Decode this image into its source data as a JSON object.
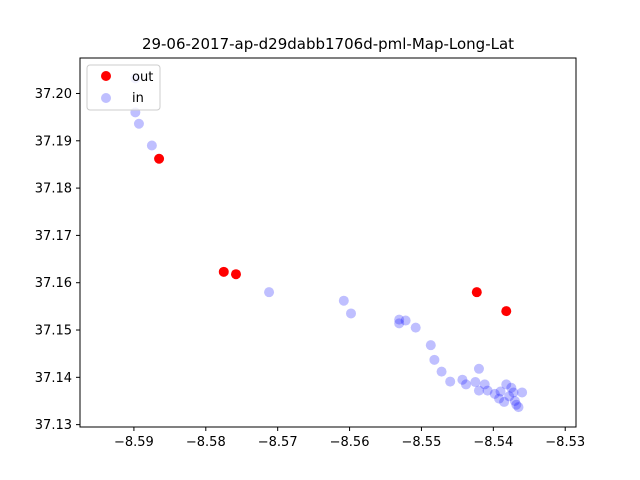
{
  "chart_data": {
    "type": "scatter",
    "title": "29-06-2017-ap-d29dabb1706d-pml-Map-Long-Lat",
    "xlabel": "",
    "ylabel": "",
    "xlim": [
      -8.5975,
      -8.5285
    ],
    "ylim": [
      37.1295,
      37.2075
    ],
    "x_ticks": [
      -8.59,
      -8.58,
      -8.57,
      -8.56,
      -8.55,
      -8.54,
      -8.53
    ],
    "x_tick_labels": [
      "−8.59",
      "−8.58",
      "−8.57",
      "−8.56",
      "−8.55",
      "−8.54",
      "−8.53"
    ],
    "y_ticks": [
      37.13,
      37.14,
      37.15,
      37.16,
      37.17,
      37.18,
      37.19,
      37.2
    ],
    "y_tick_labels": [
      "37.13",
      "37.14",
      "37.15",
      "37.16",
      "37.17",
      "37.18",
      "37.19",
      "37.20"
    ],
    "grid": false,
    "legend_position": "top-left",
    "series": [
      {
        "name": "out",
        "color": "#ff0000",
        "points": [
          [
            -8.5865,
            37.1862
          ],
          [
            -8.5775,
            37.1623
          ],
          [
            -8.5758,
            37.1618
          ],
          [
            -8.5423,
            37.158
          ],
          [
            -8.5382,
            37.154
          ]
        ]
      },
      {
        "name": "in",
        "color": "#0000ff",
        "points": [
          [
            -8.5898,
            37.2032
          ],
          [
            -8.5898,
            37.196
          ],
          [
            -8.5893,
            37.1936
          ],
          [
            -8.5875,
            37.189
          ],
          [
            -8.5712,
            37.158
          ],
          [
            -8.5608,
            37.1562
          ],
          [
            -8.5598,
            37.1535
          ],
          [
            -8.5531,
            37.1522
          ],
          [
            -8.5522,
            37.152
          ],
          [
            -8.5531,
            37.1514
          ],
          [
            -8.5508,
            37.1505
          ],
          [
            -8.5487,
            37.1468
          ],
          [
            -8.5482,
            37.1437
          ],
          [
            -8.5472,
            37.1412
          ],
          [
            -8.546,
            37.1391
          ],
          [
            -8.5443,
            37.1395
          ],
          [
            -8.5438,
            37.1385
          ],
          [
            -8.5425,
            37.139
          ],
          [
            -8.542,
            37.1418
          ],
          [
            -8.5412,
            37.1385
          ],
          [
            -8.542,
            37.1372
          ],
          [
            -8.5408,
            37.1372
          ],
          [
            -8.5398,
            37.1365
          ],
          [
            -8.539,
            37.137
          ],
          [
            -8.5382,
            37.1385
          ],
          [
            -8.5378,
            37.136
          ],
          [
            -8.5372,
            37.1368
          ],
          [
            -8.537,
            37.135
          ],
          [
            -8.5368,
            37.1342
          ],
          [
            -8.5365,
            37.1337
          ],
          [
            -8.536,
            37.1368
          ],
          [
            -8.5385,
            37.1348
          ],
          [
            -8.5392,
            37.1355
          ],
          [
            -8.5375,
            37.1378
          ]
        ]
      }
    ]
  }
}
